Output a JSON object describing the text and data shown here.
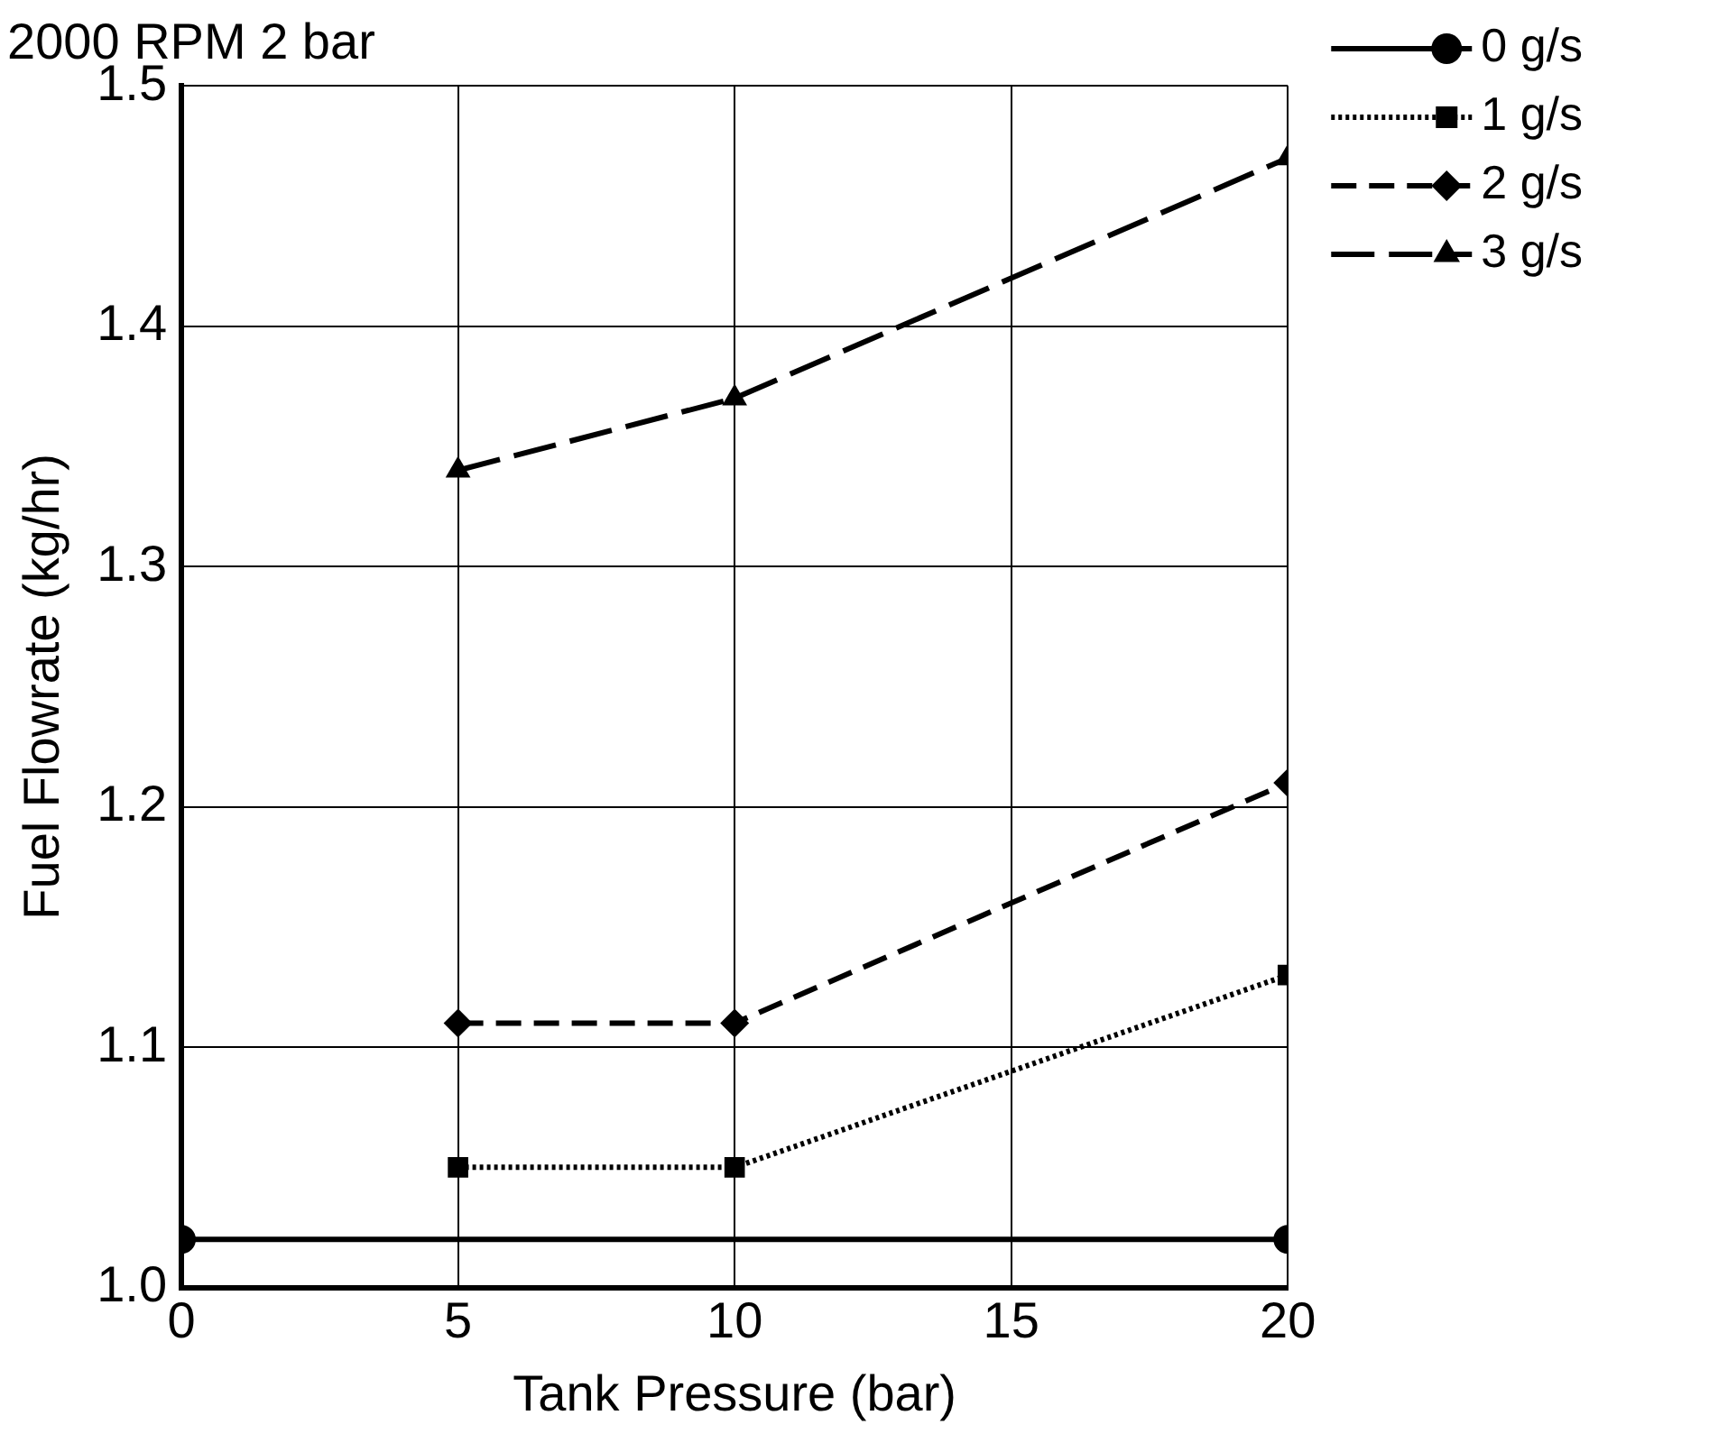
{
  "chart_data": {
    "type": "line",
    "title": "2000 RPM 2 bar",
    "xlabel": "Tank Pressure (bar)",
    "ylabel": "Fuel Flowrate (kg/hr)",
    "xlim": [
      0,
      20
    ],
    "xticks": [
      0,
      5,
      10,
      15,
      20
    ],
    "ylim": [
      1.0,
      1.5
    ],
    "yticks": [
      {
        "value": 1.0,
        "label": "1.0"
      },
      1.1,
      1.2,
      1.3,
      1.4,
      1.5
    ],
    "grid": true,
    "legend": "top right",
    "series": [
      {
        "name": "0 g/s",
        "color": "#000000",
        "x": [
          0,
          20
        ],
        "values": [
          1.02,
          1.02
        ],
        "marker": "circle",
        "line_style": "solid"
      },
      {
        "name": "1 g/s",
        "color": "#000000",
        "x": [
          5,
          10,
          20
        ],
        "values": [
          1.05,
          1.05,
          1.13
        ],
        "marker": "square",
        "line_style": "dotted"
      },
      {
        "name": "2 g/s",
        "color": "#000000",
        "x": [
          5,
          10,
          20
        ],
        "values": [
          1.11,
          1.11,
          1.21
        ],
        "marker": "diamond",
        "line_style": "dashed"
      },
      {
        "name": "3 g/s",
        "color": "#000000",
        "x": [
          5,
          10,
          20
        ],
        "values": [
          1.34,
          1.37,
          1.47
        ],
        "marker": "triangle",
        "line_style": "dashed"
      }
    ]
  }
}
